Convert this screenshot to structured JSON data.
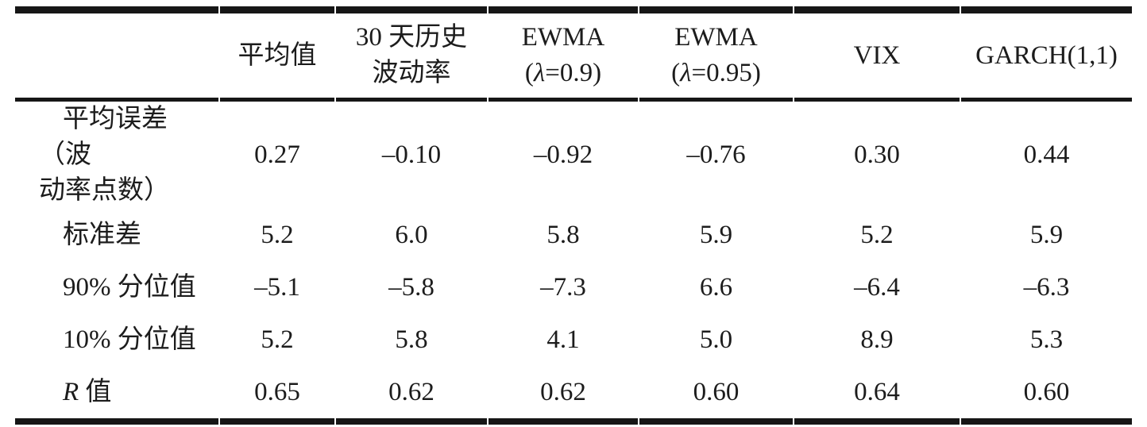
{
  "table": {
    "header": {
      "mean": "平均值",
      "hist30_line1": "30 天历史",
      "hist30_line2": "波动率",
      "ewma_label": "EWMA",
      "ewma09_pre": "(",
      "lambda": "λ",
      "ewma09_post": "=0.9)",
      "ewma095_pre": "(",
      "ewma095_post": "=0.95)",
      "vix": "VIX",
      "garch": "GARCH(1,1)"
    },
    "rows": [
      {
        "label_line1": "平均误差（波",
        "label_line2": "动率点数）",
        "values": [
          "0.27",
          "–0.10",
          "–0.92",
          "–0.76",
          "0.30",
          "0.44"
        ]
      },
      {
        "label": "标准差",
        "values": [
          "5.2",
          "6.0",
          "5.8",
          "5.9",
          "5.2",
          "5.9"
        ]
      },
      {
        "label": "90% 分位值",
        "values": [
          "–5.1",
          "–5.8",
          "–7.3",
          "6.6",
          "–6.4",
          "–6.3"
        ]
      },
      {
        "label": "10% 分位值",
        "values": [
          "5.2",
          "5.8",
          "4.1",
          "5.0",
          "8.9",
          "5.3"
        ]
      },
      {
        "label_sym": "R",
        "label_rest": " 值",
        "values": [
          "0.65",
          "0.62",
          "0.62",
          "0.60",
          "0.64",
          "0.60"
        ]
      }
    ]
  },
  "colors": {
    "text": "#1c1c1c",
    "rule": "#161616",
    "background": "#ffffff"
  }
}
